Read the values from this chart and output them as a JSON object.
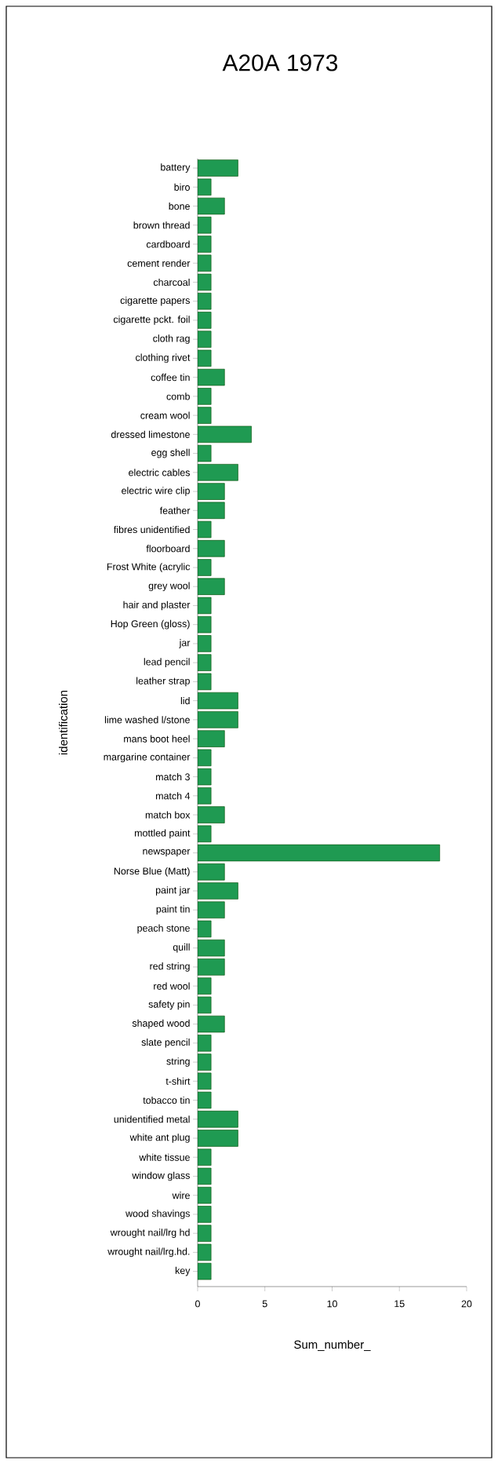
{
  "chart_data": {
    "type": "bar",
    "orientation": "horizontal",
    "title": "A20A 1973",
    "xlabel": "Sum_number_",
    "ylabel": "identification",
    "categories": [
      "battery",
      "biro",
      "bone",
      "brown thread",
      "cardboard",
      "cement render",
      "charcoal",
      "cigarette papers",
      "cigarette pckt. foil",
      "cloth rag",
      "clothing rivet",
      "coffee tin",
      "comb",
      "cream wool",
      "dressed limestone",
      "egg shell",
      "electric cables",
      "electric wire clip",
      "feather",
      "fibres unidentified",
      "floorboard",
      "Frost White (acrylic",
      "grey wool",
      "hair and plaster",
      "Hop Green (gloss)",
      "jar",
      "lead pencil",
      "leather strap",
      "lid",
      "lime washed l/stone",
      "mans boot heel",
      "margarine container",
      "match 3",
      "match 4",
      "match box",
      "mottled paint",
      "newspaper",
      "Norse Blue (Matt)",
      "paint jar",
      "paint tin",
      "peach stone",
      "quill",
      "red string",
      "red wool",
      "safety pin",
      "shaped wood",
      "slate pencil",
      "string",
      "t-shirt",
      "tobacco tin",
      "unidentified metal",
      "white ant plug",
      "white tissue",
      "window glass",
      "wire",
      "wood shavings",
      "wrought nail/lrg hd",
      "wrought nail/lrg.hd.",
      "key"
    ],
    "values": [
      3,
      1,
      2,
      1,
      1,
      1,
      1,
      1,
      1,
      1,
      1,
      2,
      1,
      1,
      4,
      1,
      3,
      2,
      2,
      1,
      2,
      1,
      2,
      1,
      1,
      1,
      1,
      1,
      3,
      3,
      2,
      1,
      1,
      1,
      2,
      1,
      18,
      2,
      3,
      2,
      1,
      2,
      2,
      1,
      1,
      2,
      1,
      1,
      1,
      1,
      3,
      3,
      1,
      1,
      1,
      1,
      1,
      1,
      1
    ],
    "color": "#1f9a52",
    "xlim": [
      0,
      20
    ],
    "xticks": [
      0,
      5,
      10,
      15,
      20
    ],
    "grid": false
  }
}
